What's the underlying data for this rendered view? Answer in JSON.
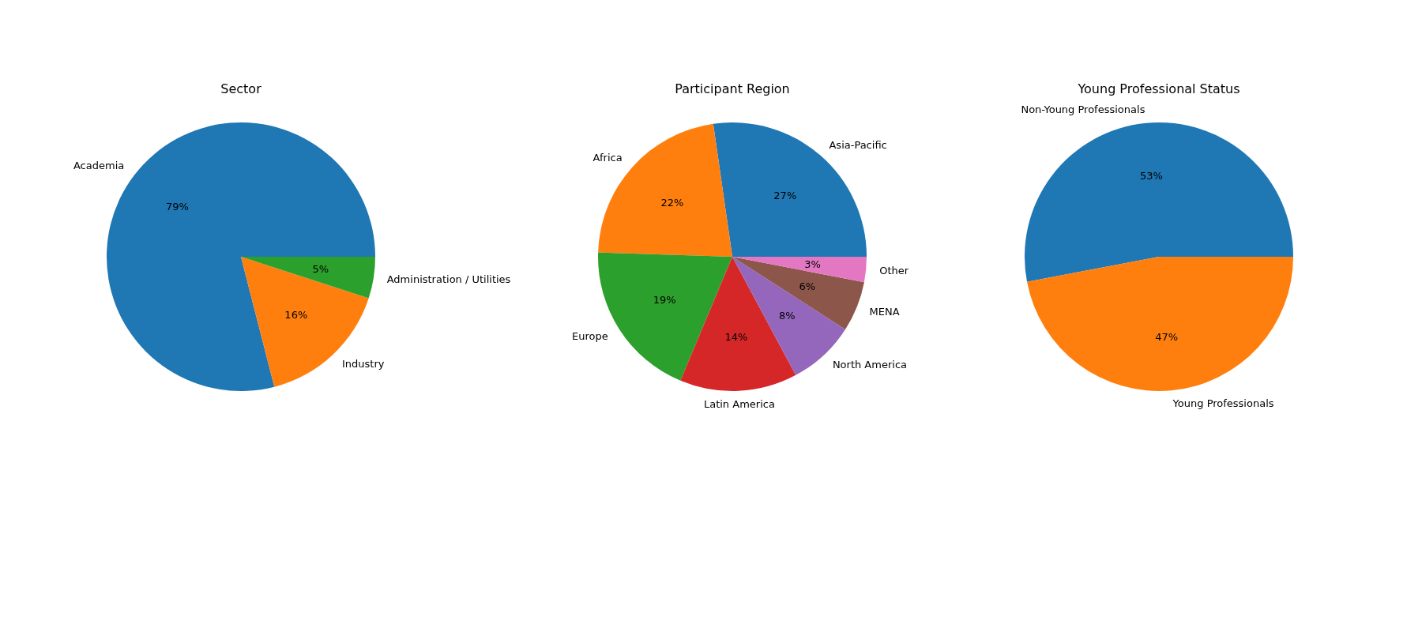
{
  "chart_data": [
    {
      "type": "pie",
      "title": "Sector",
      "categories": [
        "Academia",
        "Industry",
        "Administration / Utilities"
      ],
      "values": [
        79,
        16,
        5
      ],
      "value_labels": [
        "79%",
        "16%",
        "5%"
      ],
      "colors": [
        "#1f77b4",
        "#ff7f0e",
        "#2ca02c"
      ]
    },
    {
      "type": "pie",
      "title": "Participant Region",
      "categories": [
        "Asia-Pacific",
        "Africa",
        "Europe",
        "Latin America",
        "North America",
        "MENA",
        "Other"
      ],
      "values": [
        27,
        22,
        19,
        14,
        8,
        6,
        3
      ],
      "value_labels": [
        "27%",
        "22%",
        "19%",
        "14%",
        "8%",
        "6%",
        "3%"
      ],
      "colors": [
        "#1f77b4",
        "#ff7f0e",
        "#2ca02c",
        "#d62728",
        "#9467bd",
        "#8c564b",
        "#e377c2"
      ]
    },
    {
      "type": "pie",
      "title": "Young Professional Status",
      "categories": [
        "Non-Young Professionals",
        "Young Professionals"
      ],
      "values": [
        53,
        47
      ],
      "value_labels": [
        "53%",
        "47%"
      ],
      "colors": [
        "#1f77b4",
        "#ff7f0e"
      ]
    }
  ]
}
